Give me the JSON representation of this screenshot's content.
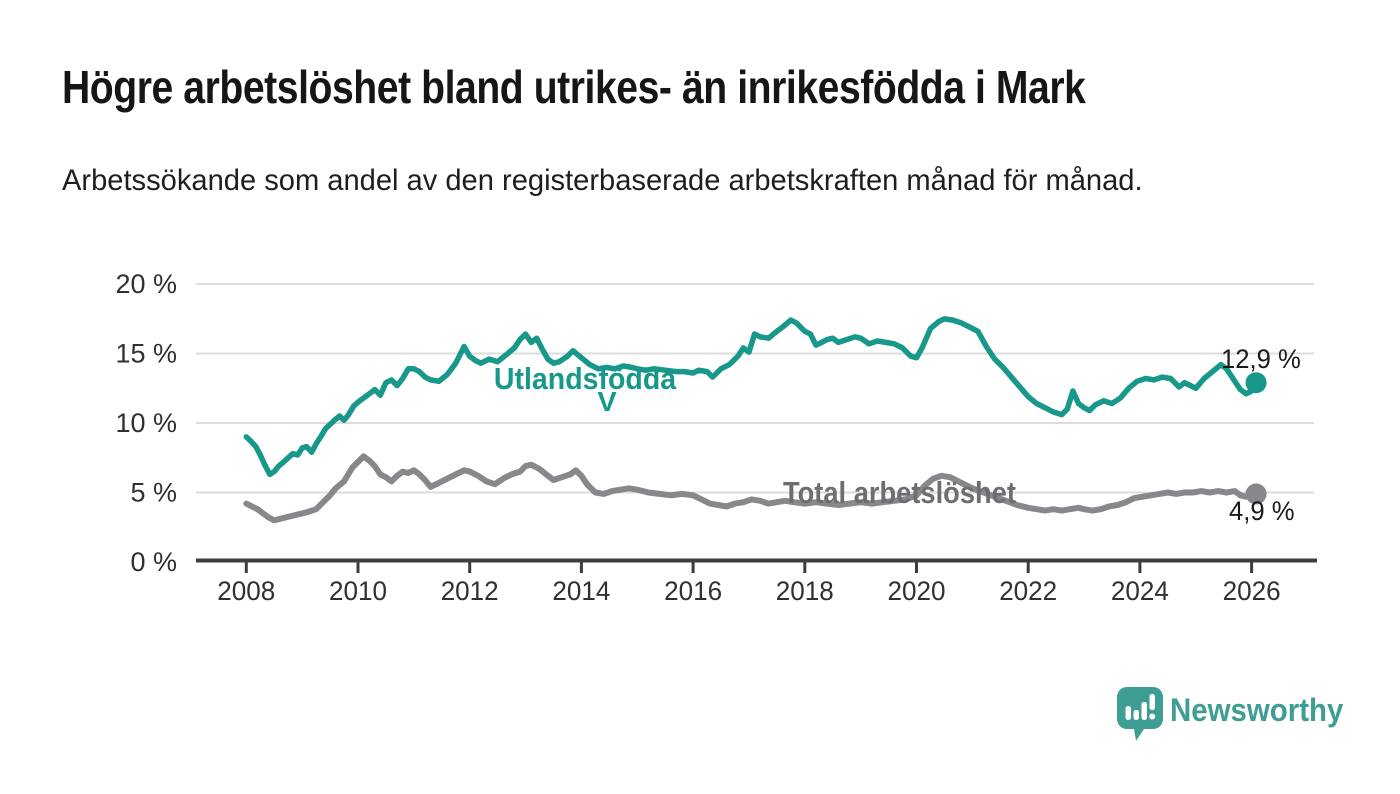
{
  "header": {
    "title": "Högre arbetslöshet bland utrikes- än inrikesfödda i Mark",
    "subtitle": "Arbetssökande som andel av den registerbaserade arbetskraften månad för månad."
  },
  "chart_data": {
    "type": "line",
    "title": "Högre arbetslöshet bland utrikes- än inrikesfödda i Mark",
    "subtitle": "Arbetssökande som andel av den registerbaserade arbetskraften månad för månad.",
    "grid": true,
    "unit": "%",
    "x_axis": {
      "ticks": [
        2008,
        2010,
        2012,
        2014,
        2016,
        2018,
        2020,
        2022,
        2024,
        2026
      ],
      "range": [
        2007.1,
        2027.1
      ]
    },
    "y_axis": {
      "tick_values": [
        0,
        5,
        10,
        15,
        20
      ],
      "tick_labels": [
        "0 %",
        "5 %",
        "10 %",
        "15 %",
        "20 %"
      ],
      "range": [
        0,
        20
      ]
    },
    "series": [
      {
        "name": "Utlandsfödda",
        "arrow": "V",
        "color": "#17988b",
        "end_label": "12,9 %",
        "end_value": 12.9,
        "points": [
          [
            2008.0,
            9.0
          ],
          [
            2008.08,
            8.7
          ],
          [
            2008.17,
            8.3
          ],
          [
            2008.25,
            7.7
          ],
          [
            2008.33,
            7.0
          ],
          [
            2008.42,
            6.3
          ],
          [
            2008.5,
            6.5
          ],
          [
            2008.58,
            6.9
          ],
          [
            2008.67,
            7.2
          ],
          [
            2008.75,
            7.5
          ],
          [
            2008.83,
            7.8
          ],
          [
            2008.92,
            7.7
          ],
          [
            2009.0,
            8.2
          ],
          [
            2009.08,
            8.3
          ],
          [
            2009.17,
            7.9
          ],
          [
            2009.25,
            8.5
          ],
          [
            2009.33,
            9.0
          ],
          [
            2009.42,
            9.6
          ],
          [
            2009.5,
            9.9
          ],
          [
            2009.58,
            10.2
          ],
          [
            2009.67,
            10.5
          ],
          [
            2009.75,
            10.2
          ],
          [
            2009.83,
            10.6
          ],
          [
            2009.92,
            11.2
          ],
          [
            2010.0,
            11.5
          ],
          [
            2010.1,
            11.8
          ],
          [
            2010.2,
            12.1
          ],
          [
            2010.3,
            12.4
          ],
          [
            2010.4,
            12.0
          ],
          [
            2010.5,
            12.9
          ],
          [
            2010.6,
            13.1
          ],
          [
            2010.7,
            12.7
          ],
          [
            2010.8,
            13.2
          ],
          [
            2010.9,
            13.9
          ],
          [
            2011.0,
            13.9
          ],
          [
            2011.1,
            13.7
          ],
          [
            2011.2,
            13.3
          ],
          [
            2011.3,
            13.1
          ],
          [
            2011.45,
            13.0
          ],
          [
            2011.6,
            13.5
          ],
          [
            2011.75,
            14.3
          ],
          [
            2011.9,
            15.5
          ],
          [
            2012.0,
            14.8
          ],
          [
            2012.1,
            14.5
          ],
          [
            2012.2,
            14.3
          ],
          [
            2012.35,
            14.6
          ],
          [
            2012.5,
            14.4
          ],
          [
            2012.65,
            14.9
          ],
          [
            2012.8,
            15.4
          ],
          [
            2012.9,
            16.0
          ],
          [
            2013.0,
            16.4
          ],
          [
            2013.1,
            15.8
          ],
          [
            2013.2,
            16.1
          ],
          [
            2013.3,
            15.3
          ],
          [
            2013.4,
            14.6
          ],
          [
            2013.5,
            14.3
          ],
          [
            2013.6,
            14.4
          ],
          [
            2013.75,
            14.8
          ],
          [
            2013.85,
            15.2
          ],
          [
            2014.0,
            14.7
          ],
          [
            2014.15,
            14.2
          ],
          [
            2014.3,
            13.9
          ],
          [
            2014.45,
            14.0
          ],
          [
            2014.6,
            13.9
          ],
          [
            2014.75,
            14.1
          ],
          [
            2014.9,
            14.0
          ],
          [
            2015.0,
            13.9
          ],
          [
            2015.15,
            13.8
          ],
          [
            2015.3,
            13.9
          ],
          [
            2015.5,
            13.8
          ],
          [
            2015.7,
            13.7
          ],
          [
            2015.85,
            13.7
          ],
          [
            2016.0,
            13.6
          ],
          [
            2016.1,
            13.8
          ],
          [
            2016.25,
            13.7
          ],
          [
            2016.35,
            13.3
          ],
          [
            2016.5,
            13.9
          ],
          [
            2016.65,
            14.2
          ],
          [
            2016.8,
            14.8
          ],
          [
            2016.9,
            15.4
          ],
          [
            2017.0,
            15.1
          ],
          [
            2017.1,
            16.4
          ],
          [
            2017.2,
            16.2
          ],
          [
            2017.35,
            16.1
          ],
          [
            2017.5,
            16.6
          ],
          [
            2017.6,
            16.9
          ],
          [
            2017.75,
            17.4
          ],
          [
            2017.85,
            17.2
          ],
          [
            2018.0,
            16.6
          ],
          [
            2018.1,
            16.4
          ],
          [
            2018.2,
            15.6
          ],
          [
            2018.3,
            15.8
          ],
          [
            2018.4,
            16.0
          ],
          [
            2018.5,
            16.1
          ],
          [
            2018.6,
            15.8
          ],
          [
            2018.75,
            16.0
          ],
          [
            2018.9,
            16.2
          ],
          [
            2019.0,
            16.1
          ],
          [
            2019.15,
            15.7
          ],
          [
            2019.3,
            15.9
          ],
          [
            2019.45,
            15.8
          ],
          [
            2019.6,
            15.7
          ],
          [
            2019.75,
            15.4
          ],
          [
            2019.9,
            14.8
          ],
          [
            2020.0,
            14.7
          ],
          [
            2020.1,
            15.4
          ],
          [
            2020.25,
            16.8
          ],
          [
            2020.4,
            17.3
          ],
          [
            2020.5,
            17.5
          ],
          [
            2020.65,
            17.4
          ],
          [
            2020.8,
            17.2
          ],
          [
            2020.95,
            16.9
          ],
          [
            2021.1,
            16.6
          ],
          [
            2021.25,
            15.5
          ],
          [
            2021.4,
            14.6
          ],
          [
            2021.55,
            14.0
          ],
          [
            2021.7,
            13.3
          ],
          [
            2021.85,
            12.6
          ],
          [
            2022.0,
            11.9
          ],
          [
            2022.15,
            11.4
          ],
          [
            2022.3,
            11.1
          ],
          [
            2022.45,
            10.8
          ],
          [
            2022.6,
            10.6
          ],
          [
            2022.7,
            11.0
          ],
          [
            2022.8,
            12.3
          ],
          [
            2022.9,
            11.4
          ],
          [
            2023.0,
            11.1
          ],
          [
            2023.1,
            10.9
          ],
          [
            2023.2,
            11.3
          ],
          [
            2023.35,
            11.6
          ],
          [
            2023.5,
            11.4
          ],
          [
            2023.65,
            11.8
          ],
          [
            2023.8,
            12.5
          ],
          [
            2023.95,
            13.0
          ],
          [
            2024.1,
            13.2
          ],
          [
            2024.25,
            13.1
          ],
          [
            2024.4,
            13.3
          ],
          [
            2024.55,
            13.2
          ],
          [
            2024.7,
            12.6
          ],
          [
            2024.8,
            12.9
          ],
          [
            2024.9,
            12.7
          ],
          [
            2025.0,
            12.5
          ],
          [
            2025.15,
            13.2
          ],
          [
            2025.3,
            13.7
          ],
          [
            2025.45,
            14.2
          ],
          [
            2025.55,
            13.9
          ],
          [
            2025.7,
            13.0
          ],
          [
            2025.8,
            12.4
          ],
          [
            2025.9,
            12.1
          ],
          [
            2026.0,
            12.3
          ],
          [
            2026.08,
            12.9
          ]
        ]
      },
      {
        "name": "Total arbetslöshet",
        "color": "#87878c",
        "end_label": "4,9 %",
        "end_value": 4.9,
        "points": [
          [
            2008.0,
            4.2
          ],
          [
            2008.1,
            4.0
          ],
          [
            2008.2,
            3.8
          ],
          [
            2008.3,
            3.5
          ],
          [
            2008.4,
            3.2
          ],
          [
            2008.5,
            3.0
          ],
          [
            2008.6,
            3.1
          ],
          [
            2008.7,
            3.2
          ],
          [
            2008.8,
            3.3
          ],
          [
            2008.9,
            3.4
          ],
          [
            2009.0,
            3.5
          ],
          [
            2009.1,
            3.6
          ],
          [
            2009.25,
            3.8
          ],
          [
            2009.4,
            4.4
          ],
          [
            2009.5,
            4.8
          ],
          [
            2009.6,
            5.3
          ],
          [
            2009.75,
            5.8
          ],
          [
            2009.9,
            6.8
          ],
          [
            2010.0,
            7.2
          ],
          [
            2010.1,
            7.6
          ],
          [
            2010.2,
            7.3
          ],
          [
            2010.3,
            6.9
          ],
          [
            2010.4,
            6.3
          ],
          [
            2010.5,
            6.1
          ],
          [
            2010.6,
            5.8
          ],
          [
            2010.7,
            6.2
          ],
          [
            2010.8,
            6.5
          ],
          [
            2010.9,
            6.4
          ],
          [
            2011.0,
            6.6
          ],
          [
            2011.1,
            6.3
          ],
          [
            2011.2,
            5.9
          ],
          [
            2011.3,
            5.4
          ],
          [
            2011.45,
            5.7
          ],
          [
            2011.6,
            6.0
          ],
          [
            2011.75,
            6.3
          ],
          [
            2011.9,
            6.6
          ],
          [
            2012.0,
            6.5
          ],
          [
            2012.15,
            6.2
          ],
          [
            2012.3,
            5.8
          ],
          [
            2012.45,
            5.6
          ],
          [
            2012.6,
            6.0
          ],
          [
            2012.75,
            6.3
          ],
          [
            2012.9,
            6.5
          ],
          [
            2013.0,
            6.9
          ],
          [
            2013.1,
            7.0
          ],
          [
            2013.25,
            6.7
          ],
          [
            2013.4,
            6.2
          ],
          [
            2013.5,
            5.9
          ],
          [
            2013.65,
            6.1
          ],
          [
            2013.8,
            6.3
          ],
          [
            2013.9,
            6.6
          ],
          [
            2014.0,
            6.2
          ],
          [
            2014.1,
            5.6
          ],
          [
            2014.25,
            5.0
          ],
          [
            2014.4,
            4.9
          ],
          [
            2014.55,
            5.1
          ],
          [
            2014.7,
            5.2
          ],
          [
            2014.85,
            5.3
          ],
          [
            2015.0,
            5.2
          ],
          [
            2015.2,
            5.0
          ],
          [
            2015.4,
            4.9
          ],
          [
            2015.6,
            4.8
          ],
          [
            2015.8,
            4.9
          ],
          [
            2016.0,
            4.8
          ],
          [
            2016.15,
            4.5
          ],
          [
            2016.3,
            4.2
          ],
          [
            2016.45,
            4.1
          ],
          [
            2016.6,
            4.0
          ],
          [
            2016.75,
            4.2
          ],
          [
            2016.9,
            4.3
          ],
          [
            2017.05,
            4.5
          ],
          [
            2017.2,
            4.4
          ],
          [
            2017.35,
            4.2
          ],
          [
            2017.5,
            4.3
          ],
          [
            2017.65,
            4.4
          ],
          [
            2017.8,
            4.3
          ],
          [
            2018.0,
            4.2
          ],
          [
            2018.2,
            4.3
          ],
          [
            2018.4,
            4.2
          ],
          [
            2018.6,
            4.1
          ],
          [
            2018.8,
            4.2
          ],
          [
            2019.0,
            4.3
          ],
          [
            2019.2,
            4.2
          ],
          [
            2019.4,
            4.3
          ],
          [
            2019.6,
            4.4
          ],
          [
            2019.8,
            4.5
          ],
          [
            2020.0,
            4.8
          ],
          [
            2020.15,
            5.5
          ],
          [
            2020.3,
            6.0
          ],
          [
            2020.45,
            6.2
          ],
          [
            2020.6,
            6.1
          ],
          [
            2020.8,
            5.7
          ],
          [
            2021.0,
            5.3
          ],
          [
            2021.2,
            5.0
          ],
          [
            2021.4,
            4.7
          ],
          [
            2021.6,
            4.4
          ],
          [
            2021.8,
            4.1
          ],
          [
            2022.0,
            3.9
          ],
          [
            2022.15,
            3.8
          ],
          [
            2022.3,
            3.7
          ],
          [
            2022.45,
            3.8
          ],
          [
            2022.6,
            3.7
          ],
          [
            2022.75,
            3.8
          ],
          [
            2022.9,
            3.9
          ],
          [
            2023.0,
            3.8
          ],
          [
            2023.15,
            3.7
          ],
          [
            2023.3,
            3.8
          ],
          [
            2023.45,
            4.0
          ],
          [
            2023.6,
            4.1
          ],
          [
            2023.75,
            4.3
          ],
          [
            2023.9,
            4.6
          ],
          [
            2024.05,
            4.7
          ],
          [
            2024.2,
            4.8
          ],
          [
            2024.35,
            4.9
          ],
          [
            2024.5,
            5.0
          ],
          [
            2024.65,
            4.9
          ],
          [
            2024.8,
            5.0
          ],
          [
            2024.95,
            5.0
          ],
          [
            2025.1,
            5.1
          ],
          [
            2025.25,
            5.0
          ],
          [
            2025.4,
            5.1
          ],
          [
            2025.55,
            5.0
          ],
          [
            2025.7,
            5.1
          ],
          [
            2025.8,
            4.8
          ],
          [
            2025.9,
            4.7
          ],
          [
            2026.0,
            4.8
          ],
          [
            2026.08,
            4.9
          ]
        ]
      }
    ],
    "colors": {
      "gridline": "#dcdcdc",
      "axis": "#3d3d3d",
      "tick_text": "#303030"
    },
    "legend_position": "inline-labels"
  },
  "branding": {
    "logo_text": "Newsworthy",
    "logo_color": "#3f9e93",
    "icon": "speech-bubble-bar-chart"
  }
}
